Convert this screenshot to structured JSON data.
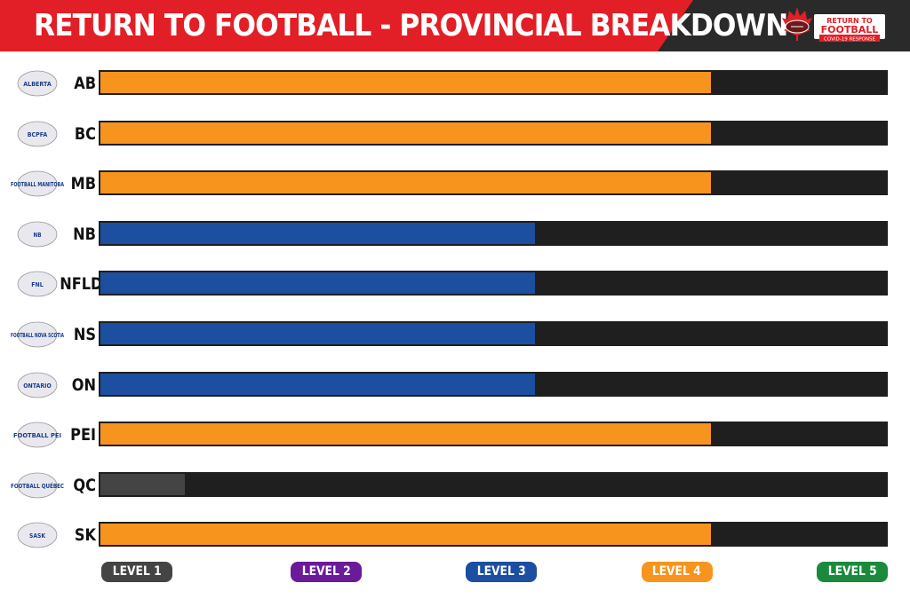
{
  "header": {
    "title": "RETURN TO FOOTBALL - PROVINCIAL BREAKDOWN",
    "logo_line1": "RETURN TO",
    "logo_line2": "FOOTBALL",
    "logo_line3": "COVID-19 RESPONSE"
  },
  "colors": {
    "level1": "#444444",
    "level2": "#6a1b9a",
    "level3": "#1c4fa0",
    "level4": "#f7941d",
    "level5": "#1b8a3c",
    "track": "#1f1f1f",
    "title_band": "#e21f26"
  },
  "chart_data": {
    "type": "bar",
    "orientation": "horizontal",
    "title": "RETURN TO FOOTBALL - PROVINCIAL BREAKDOWN",
    "categories": [
      "AB",
      "BC",
      "MB",
      "NB",
      "NFLD",
      "NS",
      "ON",
      "PEI",
      "QC",
      "SK"
    ],
    "values": [
      4,
      4,
      4,
      3,
      3,
      3,
      3,
      4,
      1,
      4
    ],
    "xlim": [
      0.5,
      5
    ],
    "x_tick_labels": [
      "LEVEL 1",
      "LEVEL 2",
      "LEVEL 3",
      "LEVEL 4",
      "LEVEL 5"
    ],
    "grid": false
  },
  "provinces": [
    {
      "code": "AB",
      "logo": "football-alberta-logo",
      "logo_text": "ALBERTA"
    },
    {
      "code": "BC",
      "logo": "bcpfa-logo",
      "logo_text": "BCPFA"
    },
    {
      "code": "MB",
      "logo": "football-manitoba-logo",
      "logo_text": "FOOTBALL MANITOBA"
    },
    {
      "code": "NB",
      "logo": "football-nb-logo",
      "logo_text": "NB"
    },
    {
      "code": "NFLD",
      "logo": "fnl-logo",
      "logo_text": "FNL"
    },
    {
      "code": "NS",
      "logo": "football-nova-scotia-logo",
      "logo_text": "FOOTBALL NOVA SCOTIA"
    },
    {
      "code": "ON",
      "logo": "ontario-football-logo",
      "logo_text": "ONTARIO"
    },
    {
      "code": "PEI",
      "logo": "football-pei-logo",
      "logo_text": "FOOTBALL PEI"
    },
    {
      "code": "QC",
      "logo": "football-quebec-logo",
      "logo_text": "FOOTBALL QUÉBEC"
    },
    {
      "code": "SK",
      "logo": "football-sask-logo",
      "logo_text": "SASK"
    }
  ],
  "legend": [
    "LEVEL 1",
    "LEVEL 2",
    "LEVEL 3",
    "LEVEL 4",
    "LEVEL 5"
  ]
}
